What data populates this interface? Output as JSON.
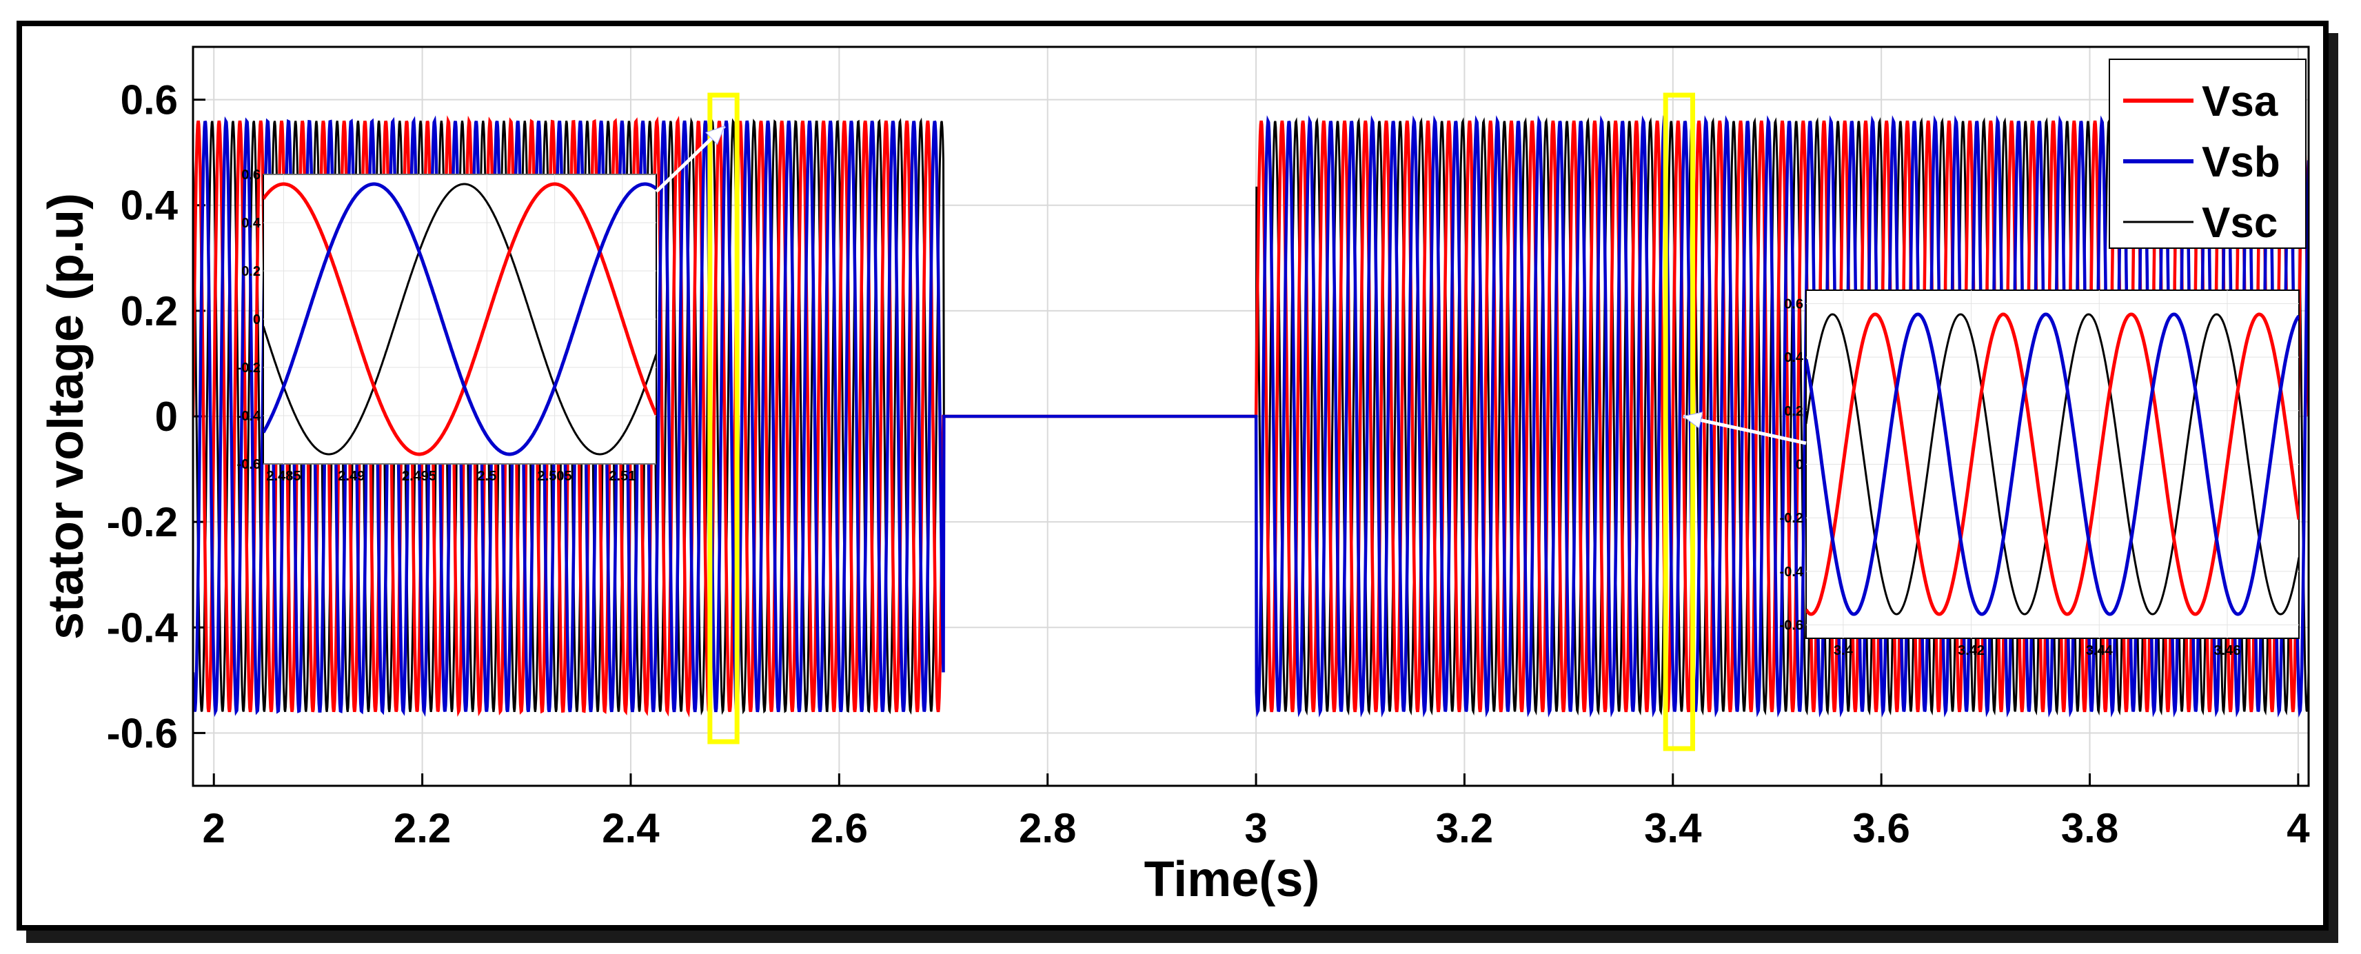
{
  "chart_data": {
    "type": "line",
    "title": "",
    "xlabel": "Time(s)",
    "ylabel": "stator voltage (p.u)",
    "xlim": [
      1.98,
      4.01
    ],
    "ylim": [
      -0.7,
      0.7
    ],
    "xticks": [
      "2",
      "2.2",
      "2.4",
      "2.6",
      "2.8",
      "3",
      "3.2",
      "3.4",
      "3.6",
      "3.8",
      "4"
    ],
    "yticks": [
      "0.6",
      "0.4",
      "0.2",
      "0",
      "-0.2",
      "-0.4",
      "-0.6"
    ],
    "grid": true,
    "legend_position": "top-right",
    "amplitude": 0.56,
    "frequency_hz": 50,
    "segments": [
      {
        "t_start": 1.98,
        "t_end": 2.7,
        "state": "sinusoidal"
      },
      {
        "t_start": 2.7,
        "t_end": 3.0,
        "state": "zero"
      },
      {
        "t_start": 3.0,
        "t_end": 4.01,
        "state": "sinusoidal"
      }
    ],
    "series": [
      {
        "name": "Vsa",
        "color": "#ff0000",
        "phase_deg": 0
      },
      {
        "name": "Vsb",
        "color": "#0000cc",
        "phase_deg": -120
      },
      {
        "name": "Vsc",
        "color": "#000000",
        "phase_deg": 120
      }
    ],
    "highlight_boxes": [
      {
        "t_start": 2.476,
        "t_end": 2.502,
        "color": "#ffff00"
      },
      {
        "t_start": 3.393,
        "t_end": 3.419,
        "color": "#ffff00"
      }
    ],
    "insets": [
      {
        "xlim": [
          2.4835,
          2.5125
        ],
        "ylim": [
          -0.6,
          0.6
        ],
        "xticks": [
          "2.485",
          "2.49",
          "2.495",
          "2.5",
          "2.505",
          "2.51"
        ],
        "xtick_values": [
          2.485,
          2.49,
          2.495,
          2.5,
          2.505,
          2.51
        ],
        "yticks": [
          "0.6",
          "0.4",
          "0.2",
          "0",
          "-0.2",
          "-0.4",
          "-0.6"
        ],
        "arrow_target_t": 2.49,
        "arrow_target_v": 0.55
      },
      {
        "xlim": [
          3.3942,
          3.4712
        ],
        "ylim": [
          -0.65,
          0.65
        ],
        "xticks": [
          "3.4",
          "3.42",
          "3.44",
          "3.46"
        ],
        "xtick_values": [
          3.4,
          3.42,
          3.44,
          3.46
        ],
        "yticks": [
          "0.6",
          "0.4",
          "0.2",
          "0",
          "-0.2",
          "-0.4",
          "-0.6"
        ],
        "arrow_target_t": 3.41,
        "arrow_target_v": 0.0
      }
    ]
  }
}
